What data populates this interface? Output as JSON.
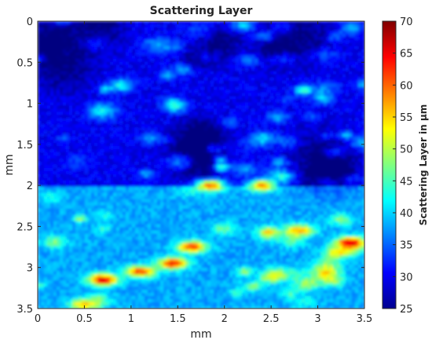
{
  "chart_data": {
    "type": "heatmap",
    "title": "Scattering Layer",
    "xlabel": "mm",
    "ylabel": "mm",
    "xlim": [
      0,
      3.5
    ],
    "ylim": [
      0,
      3.5
    ],
    "y_reversed": true,
    "x_ticks": [
      "0",
      "0.5",
      "1",
      "1.5",
      "2",
      "2.5",
      "3",
      "3.5"
    ],
    "y_ticks": [
      "0",
      "0.5",
      "1",
      "1.5",
      "2",
      "2.5",
      "3",
      "3.5"
    ],
    "colorbar": {
      "label": "Scattering Layer in μm",
      "range": [
        25,
        70
      ],
      "ticks": [
        "25",
        "30",
        "35",
        "40",
        "45",
        "50",
        "55",
        "60",
        "65",
        "70"
      ],
      "colormap": "jet"
    },
    "regions": [
      {
        "y_range": [
          0,
          2.0
        ],
        "typical_value": 30
      },
      {
        "y_range": [
          2.0,
          3.5
        ],
        "typical_value": 38
      }
    ],
    "hotspots": [
      {
        "x": 1.85,
        "y": 2.0,
        "value": 60
      },
      {
        "x": 2.4,
        "y": 2.0,
        "value": 58
      },
      {
        "x": 1.65,
        "y": 2.75,
        "value": 62
      },
      {
        "x": 1.45,
        "y": 2.95,
        "value": 64
      },
      {
        "x": 1.1,
        "y": 3.05,
        "value": 62
      },
      {
        "x": 0.7,
        "y": 3.15,
        "value": 66
      },
      {
        "x": 3.35,
        "y": 2.7,
        "value": 68
      },
      {
        "x": 2.8,
        "y": 2.55,
        "value": 58
      },
      {
        "x": 0.5,
        "y": 3.45,
        "value": 56
      }
    ]
  }
}
